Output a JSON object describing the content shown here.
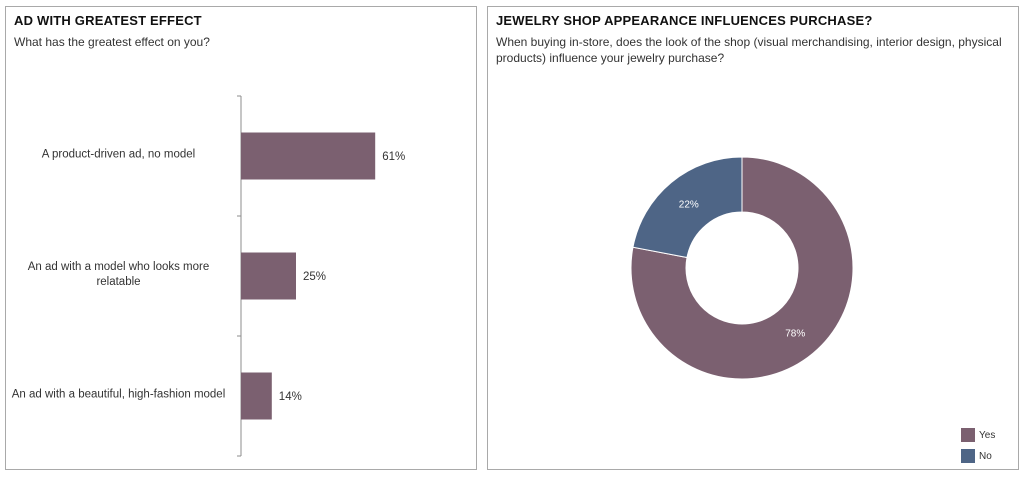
{
  "colors": {
    "yes": "#7b6070",
    "no": "#4e6586",
    "bar": "#7b6070",
    "axis": "#8c8c8c"
  },
  "chart_data": [
    {
      "type": "bar",
      "orientation": "horizontal",
      "title": "AD WITH GREATEST EFFECT",
      "subtitle": "What has the greatest effect on you?",
      "categories": [
        "A product-driven ad, no model",
        "An ad with a model who looks more relatable",
        "An ad with a beautiful, high-fashion model"
      ],
      "values": [
        61,
        25,
        14
      ],
      "value_labels": [
        "61%",
        "25%",
        "14%"
      ],
      "xlim": [
        0,
        100
      ],
      "xlabel": "",
      "ylabel": ""
    },
    {
      "type": "pie",
      "donut": true,
      "title": "JEWELRY SHOP APPEARANCE INFLUENCES PURCHASE?",
      "subtitle": "When buying in-store, does the look of the shop (visual merchandising, interior design, physical products) influence your jewelry purchase?",
      "categories": [
        "Yes",
        "No"
      ],
      "values": [
        78,
        22
      ],
      "value_labels": [
        "78%",
        "22%"
      ],
      "legend": "bottom-right"
    }
  ]
}
